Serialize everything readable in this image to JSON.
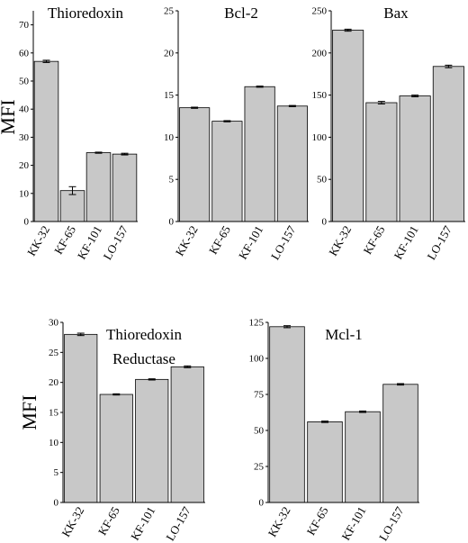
{
  "figure": {
    "ylabel_left": "MFI"
  },
  "chart_data": [
    {
      "type": "bar",
      "title": [
        "Thioredoxin"
      ],
      "ylabel": "MFI",
      "categories": [
        "KK-32",
        "KF-65",
        "KF-101",
        "LO-157"
      ],
      "values": [
        57,
        11,
        24.5,
        24
      ],
      "errors": [
        0.4,
        1.4,
        0.2,
        0.3
      ],
      "ylim": [
        0,
        75
      ],
      "yticks": [
        0,
        10,
        20,
        30,
        40,
        50,
        60,
        70
      ],
      "bar_color": "#c8c8c8",
      "grid": false
    },
    {
      "type": "bar",
      "title": [
        "Bcl-2"
      ],
      "ylabel": "",
      "categories": [
        "KK-32",
        "KF-65",
        "KF-101",
        "LO-157"
      ],
      "values": [
        13.5,
        11.9,
        16.0,
        13.7
      ],
      "errors": [
        0.07,
        0.07,
        0.07,
        0.07
      ],
      "ylim": [
        0,
        25
      ],
      "yticks": [
        0,
        5,
        10,
        15,
        20,
        25
      ],
      "bar_color": "#c8c8c8",
      "grid": false
    },
    {
      "type": "bar",
      "title": [
        "Bax"
      ],
      "ylabel": "",
      "categories": [
        "KK-32",
        "KF-65",
        "KF-101",
        "LO-157"
      ],
      "values": [
        227,
        141,
        149,
        184
      ],
      "errors": [
        1.2,
        1.5,
        1.0,
        1.5
      ],
      "ylim": [
        0,
        250
      ],
      "yticks": [
        0,
        50,
        100,
        150,
        200,
        250
      ],
      "bar_color": "#c8c8c8",
      "grid": false
    },
    {
      "type": "bar",
      "title": [
        "Thioredoxin",
        "Reductase"
      ],
      "ylabel": "MFI",
      "categories": [
        "KK-32",
        "KF-65",
        "KF-101",
        "LO-157"
      ],
      "values": [
        28,
        18,
        20.5,
        22.6
      ],
      "errors": [
        0.2,
        0.1,
        0.1,
        0.15
      ],
      "ylim": [
        0,
        30
      ],
      "yticks": [
        0,
        5,
        10,
        15,
        20,
        25,
        30
      ],
      "bar_color": "#c8c8c8",
      "grid": false
    },
    {
      "type": "bar",
      "title": [
        "Mcl-1"
      ],
      "ylabel": "",
      "categories": [
        "KK-32",
        "KF-65",
        "KF-101",
        "LO-157"
      ],
      "values": [
        122,
        56,
        63,
        82
      ],
      "errors": [
        0.7,
        0.5,
        0.5,
        0.5
      ],
      "ylim": [
        0,
        125
      ],
      "yticks": [
        0,
        25,
        50,
        75,
        100,
        125
      ],
      "bar_color": "#c8c8c8",
      "grid": false
    }
  ]
}
